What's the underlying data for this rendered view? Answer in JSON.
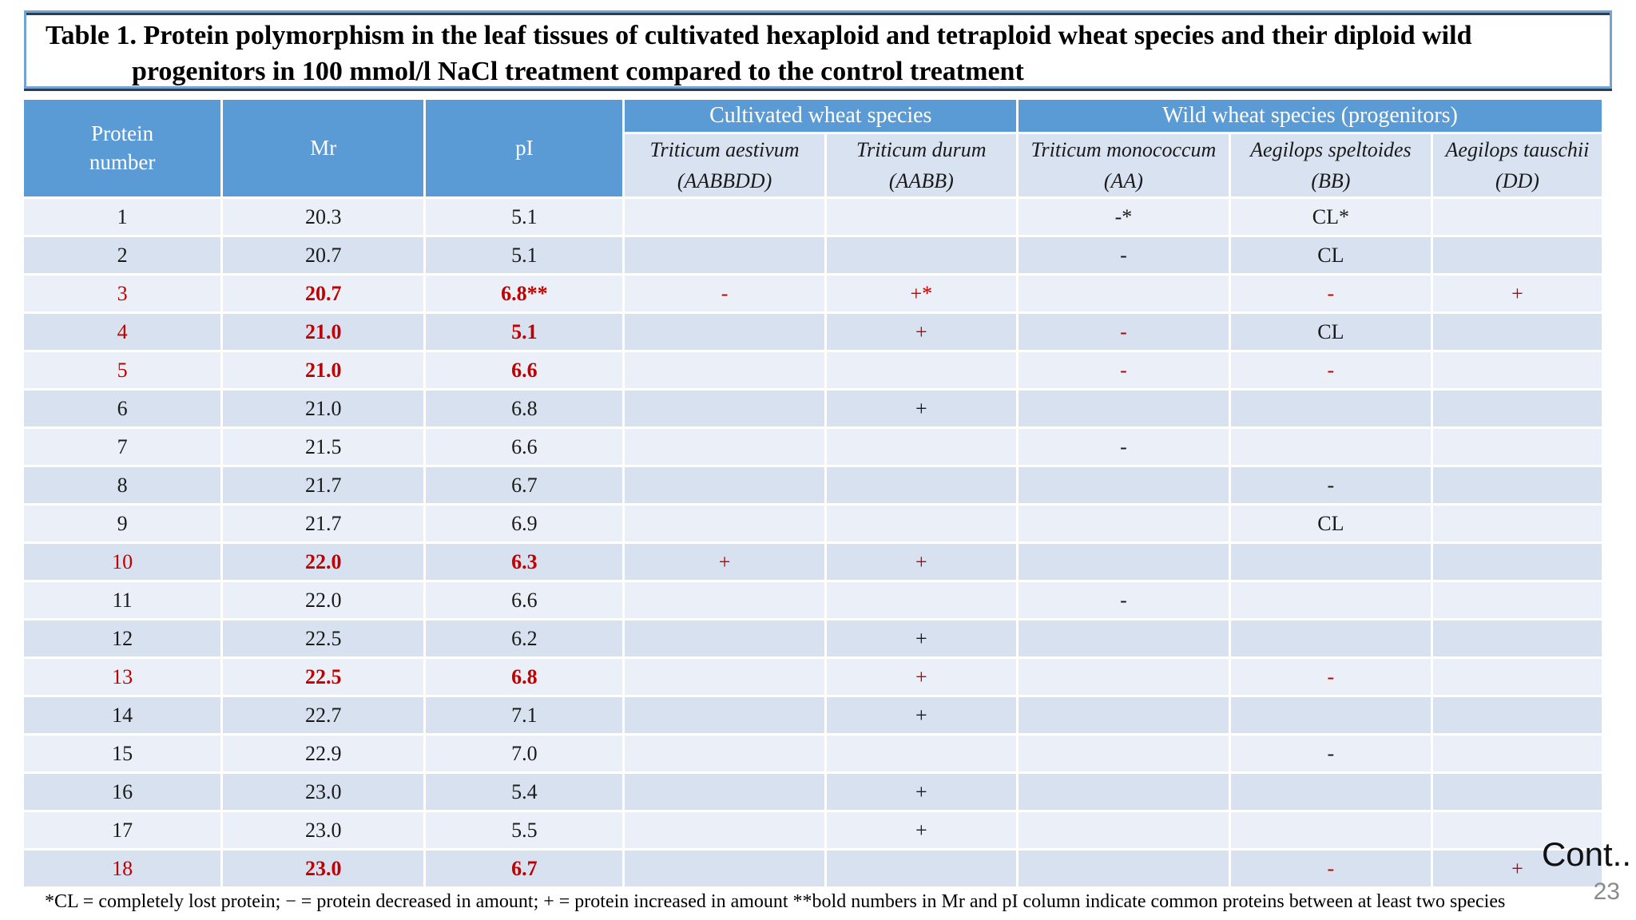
{
  "title": {
    "line1": "Table 1. Protein polymorphism in the leaf tissues of cultivated hexaploid and tetraploid wheat species and their diploid wild",
    "line2": "progenitors in 100 mmol/l NaCl treatment compared to the control treatment"
  },
  "table": {
    "headers": {
      "protein": "Protein number",
      "mr": "Mr",
      "pi": "pI"
    },
    "groups": [
      "Cultivated wheat species",
      "Wild wheat species (progenitors)"
    ],
    "species": [
      {
        "name": "Triticum aestivum",
        "genome": "(AABBDD)"
      },
      {
        "name": "Triticum durum",
        "genome": "(AABB)"
      },
      {
        "name": "Triticum monococcum",
        "genome": "(AA)"
      },
      {
        "name": "Aegilops speltoides",
        "genome": "(BB)"
      },
      {
        "name": "Aegilops tauschii",
        "genome": "(DD)"
      }
    ],
    "rows": [
      {
        "num": "1",
        "mr": "20.3",
        "pi": "5.1",
        "cells": [
          "",
          "",
          "-*",
          "CL*",
          ""
        ],
        "red": false
      },
      {
        "num": "2",
        "mr": "20.7",
        "pi": "5.1",
        "cells": [
          "",
          "",
          "-",
          "CL",
          ""
        ],
        "red": false
      },
      {
        "num": "3",
        "mr": "20.7",
        "pi": "6.8**",
        "cells": [
          "-",
          "+*",
          "",
          "-",
          "+"
        ],
        "red": true
      },
      {
        "num": "4",
        "mr": "21.0",
        "pi": "5.1",
        "cells": [
          "",
          "+",
          "-",
          "CL",
          ""
        ],
        "red": true,
        "black_cells": [
          3
        ]
      },
      {
        "num": "5",
        "mr": "21.0",
        "pi": "6.6",
        "cells": [
          "",
          "",
          "-",
          "-",
          ""
        ],
        "red": true
      },
      {
        "num": "6",
        "mr": "21.0",
        "pi": "6.8",
        "cells": [
          "",
          "+",
          "",
          "",
          ""
        ],
        "red": false
      },
      {
        "num": "7",
        "mr": "21.5",
        "pi": "6.6",
        "cells": [
          "",
          "",
          "-",
          "",
          ""
        ],
        "red": false
      },
      {
        "num": "8",
        "mr": "21.7",
        "pi": "6.7",
        "cells": [
          "",
          "",
          "",
          "-",
          ""
        ],
        "red": false
      },
      {
        "num": "9",
        "mr": "21.7",
        "pi": "6.9",
        "cells": [
          "",
          "",
          "",
          "CL",
          ""
        ],
        "red": false
      },
      {
        "num": "10",
        "mr": "22.0",
        "pi": "6.3",
        "cells": [
          "+",
          "+",
          "",
          "",
          ""
        ],
        "red": true
      },
      {
        "num": "11",
        "mr": "22.0",
        "pi": "6.6",
        "cells": [
          "",
          "",
          "-",
          "",
          ""
        ],
        "red": false
      },
      {
        "num": "12",
        "mr": "22.5",
        "pi": "6.2",
        "cells": [
          "",
          "+",
          "",
          "",
          ""
        ],
        "red": false
      },
      {
        "num": "13",
        "mr": "22.5",
        "pi": "6.8",
        "cells": [
          "",
          "+",
          "",
          "-",
          ""
        ],
        "red": true
      },
      {
        "num": "14",
        "mr": "22.7",
        "pi": "7.1",
        "cells": [
          "",
          "+",
          "",
          "",
          ""
        ],
        "red": false
      },
      {
        "num": "15",
        "mr": "22.9",
        "pi": "7.0",
        "cells": [
          "",
          "",
          "",
          "-",
          ""
        ],
        "red": false
      },
      {
        "num": "16",
        "mr": "23.0",
        "pi": "5.4",
        "cells": [
          "",
          "+",
          "",
          "",
          ""
        ],
        "red": false
      },
      {
        "num": "17",
        "mr": "23.0",
        "pi": "5.5",
        "cells": [
          "",
          "+",
          "",
          "",
          ""
        ],
        "red": false
      },
      {
        "num": "18",
        "mr": "23.0",
        "pi": "6.7",
        "cells": [
          "",
          "",
          "",
          "-",
          "+"
        ],
        "red": true
      }
    ]
  },
  "footnote": "*CL = completely lost protein; − = protein decreased in amount; + = protein increased in amount **bold numbers in Mr and pI column indicate common proteins between at least two species",
  "cont_label": "Cont..",
  "page_number": "23",
  "colors": {
    "header_blue": "#5B9BD5",
    "species_row_bg": "#D9E2F1",
    "row_light": "#EBF0F8",
    "row_dark": "#D7E1EF",
    "highlight_red": "#C00000",
    "title_border_blue": "#74A3D1"
  }
}
